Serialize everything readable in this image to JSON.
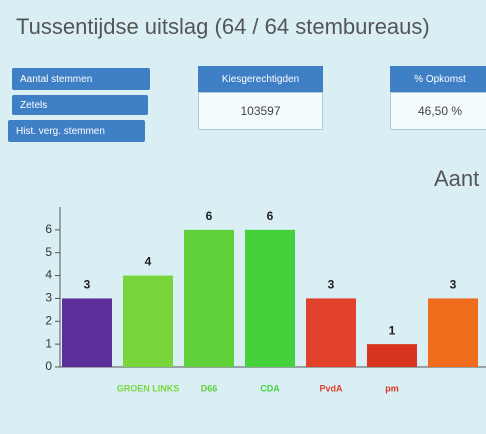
{
  "header": {
    "title": "Tussentijdse uitslag (64 / 64 stembureaus)"
  },
  "buttons": [
    "Aantal stemmen",
    "Zetels",
    "Hist. verg. stemmen"
  ],
  "stats": [
    {
      "label": "Kiesgerechtigden",
      "value": "103597"
    },
    {
      "label": "% Opkomst",
      "value": "46,50 %"
    }
  ],
  "chart_data": {
    "type": "bar",
    "title": "Aant",
    "categories": [
      null,
      "GROEN LINKS",
      "D66",
      "CDA",
      "PvdA",
      "pm",
      null
    ],
    "values": [
      3,
      4,
      6,
      6,
      3,
      1,
      3
    ],
    "colors": [
      "#5a2f9c",
      "#78d63c",
      "#5fcf3a",
      "#45d13c",
      "#e2412b",
      "#d8341f",
      "#ee6c1c"
    ],
    "ylim": [
      0,
      7
    ],
    "yticks": [
      0,
      1,
      2,
      3,
      4,
      5,
      6
    ]
  }
}
